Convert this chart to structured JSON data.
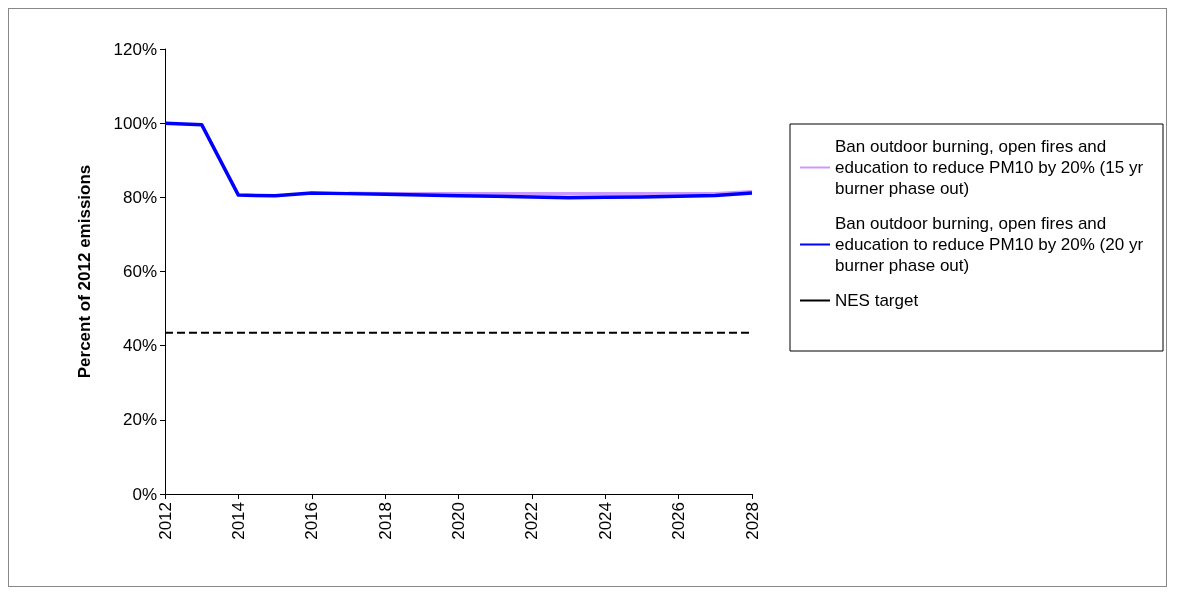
{
  "chart_data": {
    "type": "line",
    "ylabel": "Percent of 2012 emissions",
    "x": [
      2012,
      2013,
      2014,
      2015,
      2016,
      2017,
      2018,
      2019,
      2020,
      2021,
      2022,
      2023,
      2024,
      2025,
      2026,
      2027,
      2028
    ],
    "series": [
      {
        "name": "Ban outdoor burning, open fires and education to reduce PM10 by 20% (15 yr burner phase out)",
        "color": "#cc99ff",
        "values": [
          null,
          null,
          null,
          null,
          null,
          81.1,
          81,
          81,
          81,
          81,
          81,
          81,
          81,
          81,
          81,
          81,
          81.5
        ]
      },
      {
        "name": "Ban outdoor burning, open fires and education to reduce PM10 by 20% (20 yr burner phase out)",
        "color": "#0000ff",
        "values": [
          100,
          99.6,
          80.6,
          80.4,
          81.2,
          81,
          80.8,
          80.6,
          80.4,
          80.3,
          80.1,
          79.9,
          80,
          80.1,
          80.3,
          80.5,
          81.2
        ]
      }
    ],
    "ref_lines": [
      {
        "axis": "y",
        "value": 43.5,
        "label": "NES target",
        "color": "#000000",
        "line_style": "dashed"
      }
    ],
    "xlim": [
      2012,
      2028
    ],
    "xticks": [
      2012,
      2014,
      2016,
      2018,
      2020,
      2022,
      2024,
      2026,
      2028
    ],
    "ylim": [
      0,
      120
    ],
    "yticks": [
      {
        "value": 0,
        "label": "0%"
      },
      {
        "value": 20,
        "label": "20%"
      },
      {
        "value": 40,
        "label": "40%"
      },
      {
        "value": 60,
        "label": "60%"
      },
      {
        "value": 80,
        "label": "80%"
      },
      {
        "value": 100,
        "label": "100%"
      },
      {
        "value": 120,
        "label": "120%"
      }
    ],
    "grid": false,
    "legend": "right",
    "marker": "none",
    "line_style": "solid"
  }
}
